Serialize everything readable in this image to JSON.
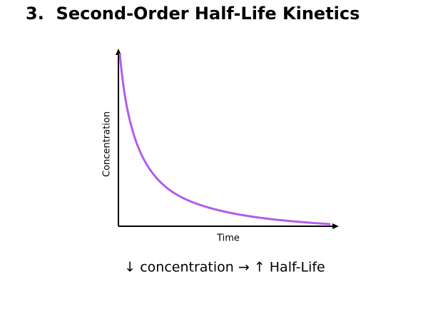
{
  "title": "3.  Second-Order Half-Life Kinetics",
  "graph": {
    "y_label": "Concentration",
    "x_label": "Time"
  },
  "caption": "↓ concentration → ↑ Half-Life"
}
